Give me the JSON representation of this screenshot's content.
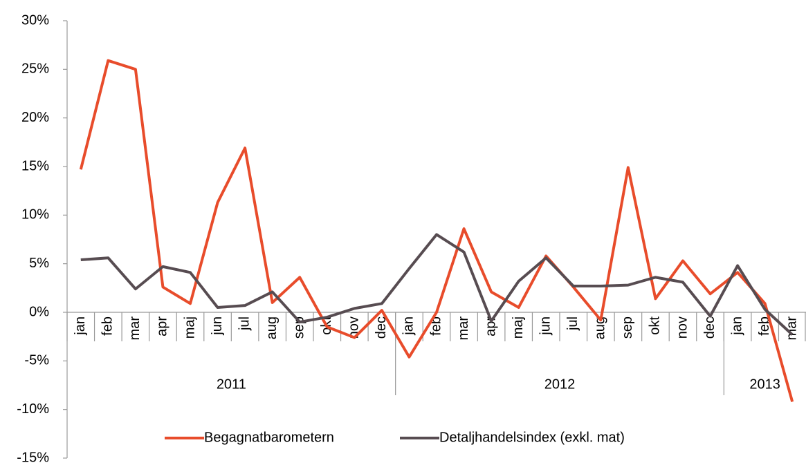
{
  "chart_data": {
    "type": "line",
    "categories": [
      "jan",
      "feb",
      "mar",
      "apr",
      "maj",
      "jun",
      "jul",
      "aug",
      "sep",
      "okt",
      "nov",
      "dec",
      "jan",
      "feb",
      "mar",
      "apr",
      "maj",
      "jun",
      "jul",
      "aug",
      "sep",
      "okt",
      "nov",
      "dec",
      "jan",
      "feb",
      "mar"
    ],
    "groups": [
      {
        "name": "2011",
        "size": 12
      },
      {
        "name": "2012",
        "size": 12
      },
      {
        "name": "2013",
        "size": 3
      }
    ],
    "series": [
      {
        "name": "Begagnatbarometern",
        "color": "#e84c2b",
        "values": [
          14.7,
          25.9,
          25.0,
          2.6,
          0.9,
          11.3,
          16.9,
          1.0,
          3.6,
          -1.5,
          -2.6,
          0.2,
          -4.6,
          0.0,
          8.6,
          2.1,
          0.5,
          5.8,
          2.6,
          -0.8,
          14.9,
          1.4,
          5.3,
          1.9,
          4.1,
          0.9,
          -9.2
        ]
      },
      {
        "name": "Detaljhandelsindex (exkl. mat)",
        "color": "#574c51",
        "values": [
          5.4,
          5.6,
          2.4,
          4.7,
          4.1,
          0.5,
          0.7,
          2.1,
          -1.0,
          -0.5,
          0.4,
          0.9,
          4.5,
          8.0,
          6.2,
          -0.9,
          3.2,
          5.6,
          2.7,
          2.7,
          2.8,
          3.6,
          3.1,
          -0.4,
          4.8,
          0.3,
          -2.3
        ]
      }
    ],
    "ylim": [
      -15,
      30
    ],
    "yticks": [
      {
        "value": -15,
        "label": "-15%"
      },
      {
        "value": -10,
        "label": "-10%"
      },
      {
        "value": -5,
        "label": "-5%"
      },
      {
        "value": 0,
        "label": "0%"
      },
      {
        "value": 5,
        "label": "5%"
      },
      {
        "value": 10,
        "label": "10%"
      },
      {
        "value": 15,
        "label": "15%"
      },
      {
        "value": 20,
        "label": "20%"
      },
      {
        "value": 25,
        "label": "25%"
      },
      {
        "value": 30,
        "label": "30%"
      }
    ],
    "legend": "bottom",
    "grid": false
  }
}
